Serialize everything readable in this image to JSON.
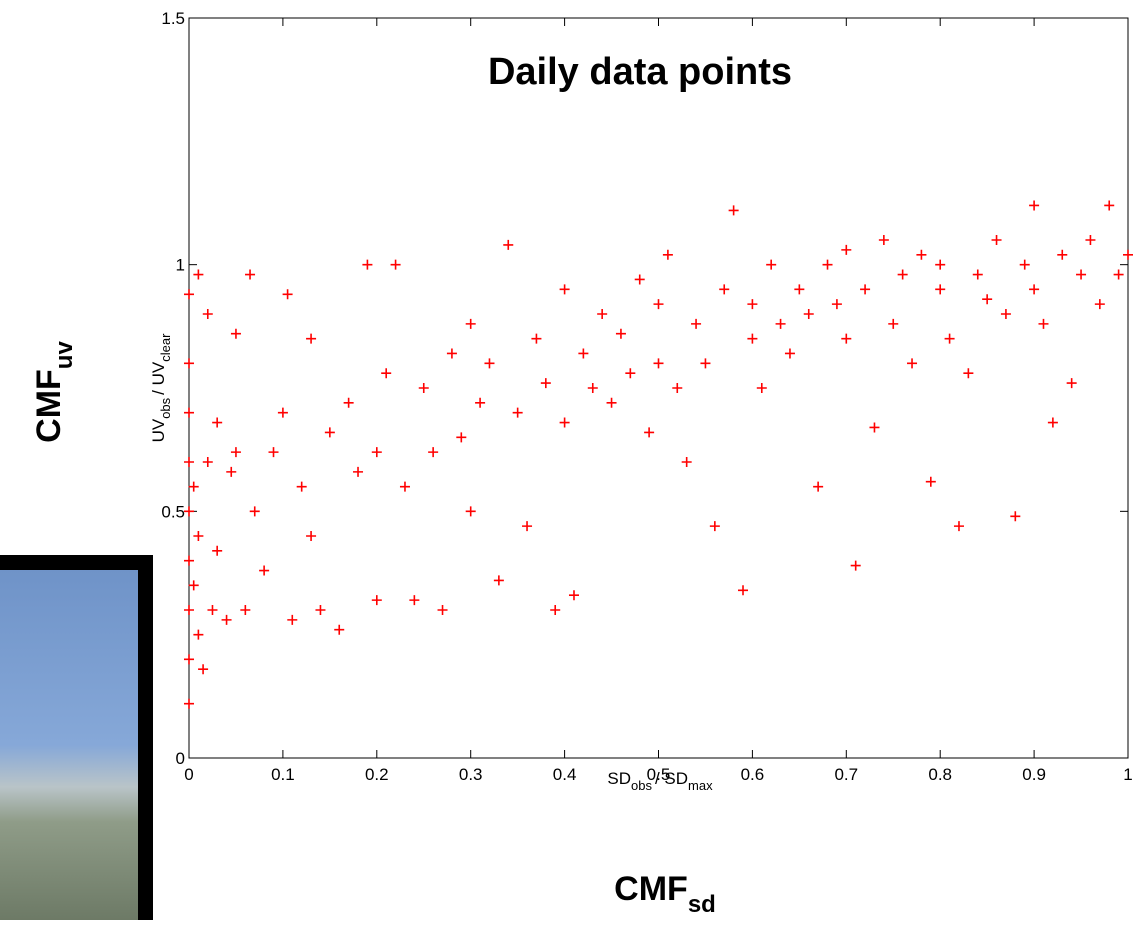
{
  "chart_data": {
    "type": "scatter",
    "title": "Daily data points",
    "xlabel": [
      "SD",
      "obs",
      "/ SD",
      "max"
    ],
    "ylabel": [
      "UV",
      "obs",
      "/ UV",
      "clear"
    ],
    "xlim": [
      0,
      1
    ],
    "ylim": [
      0,
      1.5
    ],
    "xticks": [
      0,
      0.1,
      0.2,
      0.3,
      0.4,
      0.5,
      0.6,
      0.7,
      0.8,
      0.9,
      1
    ],
    "yticks": [
      0,
      0.5,
      1,
      1.5
    ],
    "series": [
      {
        "color": "#ff0000",
        "x": [
          0,
          0,
          0,
          0,
          0,
          0,
          0,
          0,
          0,
          0.005,
          0.005,
          0.01,
          0.01,
          0.01,
          0.015,
          0.02,
          0.02,
          0.025,
          0.03,
          0.03,
          0.04,
          0.045,
          0.05,
          0.05,
          0.06,
          0.065,
          0.07,
          0.08,
          0.09,
          0.1,
          0.105,
          0.11,
          0.12,
          0.13,
          0.13,
          0.14,
          0.15,
          0.16,
          0.17,
          0.18,
          0.19,
          0.2,
          0.2,
          0.21,
          0.22,
          0.23,
          0.24,
          0.25,
          0.26,
          0.27,
          0.28,
          0.29,
          0.3,
          0.3,
          0.31,
          0.32,
          0.33,
          0.34,
          0.35,
          0.36,
          0.37,
          0.38,
          0.39,
          0.4,
          0.4,
          0.41,
          0.42,
          0.43,
          0.44,
          0.45,
          0.46,
          0.47,
          0.48,
          0.49,
          0.5,
          0.5,
          0.51,
          0.52,
          0.53,
          0.54,
          0.55,
          0.56,
          0.57,
          0.58,
          0.59,
          0.6,
          0.6,
          0.61,
          0.62,
          0.63,
          0.64,
          0.65,
          0.66,
          0.67,
          0.68,
          0.69,
          0.7,
          0.7,
          0.71,
          0.72,
          0.73,
          0.74,
          0.75,
          0.76,
          0.77,
          0.78,
          0.79,
          0.8,
          0.8,
          0.81,
          0.82,
          0.83,
          0.84,
          0.85,
          0.86,
          0.87,
          0.88,
          0.89,
          0.9,
          0.9,
          0.91,
          0.92,
          0.93,
          0.94,
          0.95,
          0.96,
          0.97,
          0.98,
          0.99,
          1
        ],
        "values": [
          0.11,
          0.2,
          0.3,
          0.4,
          0.5,
          0.6,
          0.7,
          0.8,
          0.94,
          0.35,
          0.55,
          0.98,
          0.45,
          0.25,
          0.18,
          0.6,
          0.9,
          0.3,
          0.68,
          0.42,
          0.28,
          0.58,
          0.62,
          0.86,
          0.3,
          0.98,
          0.5,
          0.38,
          0.62,
          0.7,
          0.94,
          0.28,
          0.55,
          0.45,
          0.85,
          0.3,
          0.66,
          0.26,
          0.72,
          0.58,
          1.0,
          0.32,
          0.62,
          0.78,
          1.0,
          0.55,
          0.32,
          0.75,
          0.62,
          0.3,
          0.82,
          0.65,
          0.5,
          0.88,
          0.72,
          0.8,
          0.36,
          1.04,
          0.7,
          0.47,
          0.85,
          0.76,
          0.3,
          0.68,
          0.95,
          0.33,
          0.82,
          0.75,
          0.9,
          0.72,
          0.86,
          0.78,
          0.97,
          0.66,
          0.92,
          0.8,
          1.02,
          0.75,
          0.6,
          0.88,
          0.8,
          0.47,
          0.95,
          1.11,
          0.34,
          0.85,
          0.92,
          0.75,
          1.0,
          0.88,
          0.82,
          0.95,
          0.9,
          0.55,
          1.0,
          0.92,
          0.85,
          1.03,
          0.39,
          0.95,
          0.67,
          1.05,
          0.88,
          0.98,
          0.8,
          1.02,
          0.56,
          0.95,
          1.0,
          0.85,
          0.47,
          0.78,
          0.98,
          0.93,
          1.05,
          0.9,
          0.49,
          1.0,
          1.12,
          0.95,
          0.88,
          0.68,
          1.02,
          0.76,
          0.98,
          1.05,
          0.92,
          1.12,
          0.98,
          1.02
        ]
      }
    ]
  },
  "outer_labels": {
    "left": [
      "CMF",
      "uv"
    ],
    "bottom": [
      "CMF",
      "sd"
    ]
  }
}
